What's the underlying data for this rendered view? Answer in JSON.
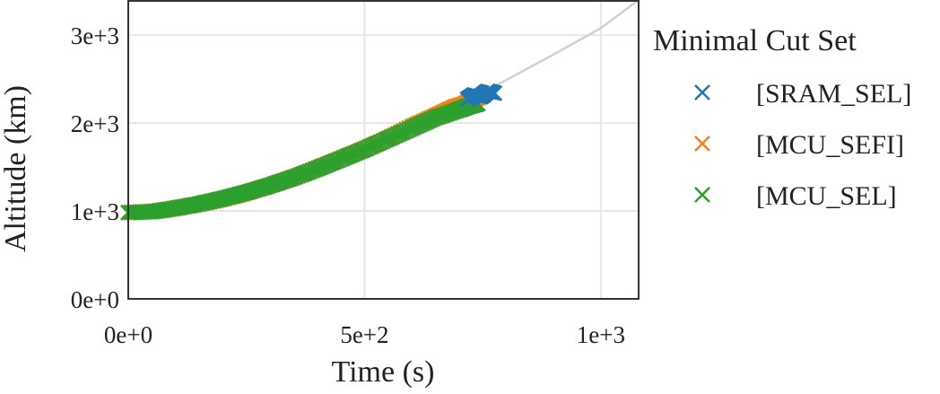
{
  "chart_data": {
    "type": "scatter",
    "xlabel": "Time (s)",
    "ylabel": "Altitude (km)",
    "xlim": [
      0,
      1080
    ],
    "ylim": [
      0,
      3400
    ],
    "x_ticks": [
      {
        "value": 0,
        "label": "0e+0"
      },
      {
        "value": 500,
        "label": "5e+2"
      },
      {
        "value": 1000,
        "label": "1e+3"
      }
    ],
    "y_ticks": [
      {
        "value": 0,
        "label": "0e+0"
      },
      {
        "value": 1000,
        "label": "1e+3"
      },
      {
        "value": 2000,
        "label": "2e+3"
      },
      {
        "value": 3000,
        "label": "3e+3"
      }
    ],
    "grid": true,
    "reference_curve": {
      "color": "#d0d0d0",
      "x": [
        0,
        100,
        200,
        300,
        400,
        500,
        600,
        700,
        800,
        900,
        1000,
        1080
      ],
      "y": [
        980,
        1030,
        1140,
        1300,
        1490,
        1710,
        1960,
        2210,
        2490,
        2780,
        3080,
        3400
      ]
    },
    "legend": {
      "title": "Minimal Cut Set",
      "placement": "outside-right"
    },
    "series": [
      {
        "name": "[SRAM_SEL]",
        "color": "#1f77b4",
        "marker": "x",
        "x": [
          718,
          732,
          746,
          760,
          775
        ],
        "y": [
          2270,
          2320,
          2300,
          2360,
          2340
        ]
      },
      {
        "name": "[MCU_SEFI]",
        "color": "#ff7f0e",
        "marker": "x",
        "x": [
          0,
          60,
          120,
          180,
          240,
          300,
          360,
          420,
          480,
          540,
          600,
          650,
          690,
          710,
          725,
          740,
          752
        ],
        "y": [
          985,
          1000,
          1050,
          1110,
          1190,
          1290,
          1400,
          1530,
          1660,
          1800,
          1960,
          2080,
          2180,
          2210,
          2260,
          2290,
          2320
        ]
      },
      {
        "name": "[MCU_SEL]",
        "color": "#2ca02c",
        "marker": "x",
        "x": [
          0,
          50,
          100,
          150,
          200,
          250,
          300,
          350,
          400,
          450,
          500,
          550,
          600,
          650,
          700,
          720,
          740
        ],
        "y": [
          980,
          990,
          1030,
          1080,
          1140,
          1210,
          1290,
          1380,
          1480,
          1590,
          1700,
          1820,
          1940,
          2060,
          2150,
          2190,
          2220
        ]
      }
    ]
  }
}
